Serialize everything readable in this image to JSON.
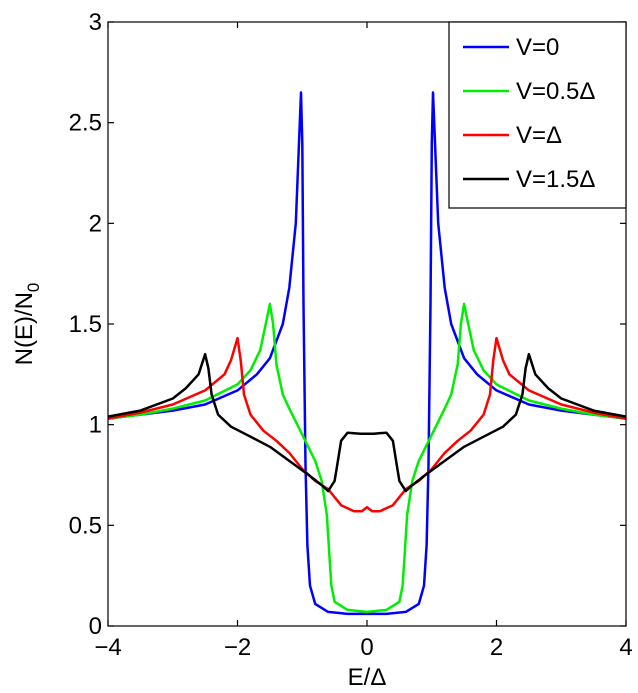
{
  "chart_data": {
    "type": "line",
    "xlabel": "E/Δ",
    "ylabel": "N(E)/N",
    "ylabel_subscript": "0",
    "xlim": [
      -4,
      4
    ],
    "ylim": [
      0,
      3
    ],
    "xticks": [
      -4,
      -2,
      0,
      2,
      4
    ],
    "xtick_labels": [
      "−4",
      "−2",
      "0",
      "2",
      "4"
    ],
    "yticks": [
      0,
      0.5,
      1,
      1.5,
      2,
      2.5,
      3
    ],
    "ytick_labels": [
      "0",
      "0.5",
      "1",
      "1.5",
      "2",
      "2.5",
      "3"
    ],
    "grid": false,
    "legend_position": "top-right",
    "series": [
      {
        "name": "V=0",
        "color": "#0000ff",
        "points": [
          [
            -4.0,
            1.03
          ],
          [
            -3.5,
            1.05
          ],
          [
            -3.0,
            1.07
          ],
          [
            -2.5,
            1.1
          ],
          [
            -2.0,
            1.17
          ],
          [
            -1.7,
            1.25
          ],
          [
            -1.5,
            1.33
          ],
          [
            -1.3,
            1.5
          ],
          [
            -1.2,
            1.68
          ],
          [
            -1.1,
            2.0
          ],
          [
            -1.05,
            2.4
          ],
          [
            -1.02,
            2.65
          ],
          [
            -1.0,
            2.4
          ],
          [
            -0.98,
            1.6
          ],
          [
            -0.95,
            0.8
          ],
          [
            -0.92,
            0.4
          ],
          [
            -0.88,
            0.2
          ],
          [
            -0.8,
            0.11
          ],
          [
            -0.6,
            0.07
          ],
          [
            -0.3,
            0.06
          ],
          [
            0.0,
            0.06
          ],
          [
            0.3,
            0.06
          ],
          [
            0.6,
            0.07
          ],
          [
            0.8,
            0.11
          ],
          [
            0.88,
            0.2
          ],
          [
            0.92,
            0.4
          ],
          [
            0.95,
            0.8
          ],
          [
            0.98,
            1.6
          ],
          [
            1.0,
            2.4
          ],
          [
            1.02,
            2.65
          ],
          [
            1.05,
            2.4
          ],
          [
            1.1,
            2.0
          ],
          [
            1.2,
            1.68
          ],
          [
            1.3,
            1.5
          ],
          [
            1.5,
            1.33
          ],
          [
            1.7,
            1.25
          ],
          [
            2.0,
            1.17
          ],
          [
            2.5,
            1.1
          ],
          [
            3.0,
            1.07
          ],
          [
            3.5,
            1.05
          ],
          [
            4.0,
            1.03
          ]
        ]
      },
      {
        "name": "V=0.5Δ",
        "color": "#00ee00",
        "points": [
          [
            -4.0,
            1.03
          ],
          [
            -3.5,
            1.05
          ],
          [
            -3.0,
            1.08
          ],
          [
            -2.5,
            1.12
          ],
          [
            -2.0,
            1.2
          ],
          [
            -1.8,
            1.27
          ],
          [
            -1.65,
            1.37
          ],
          [
            -1.55,
            1.52
          ],
          [
            -1.5,
            1.6
          ],
          [
            -1.45,
            1.5
          ],
          [
            -1.4,
            1.3
          ],
          [
            -1.3,
            1.15
          ],
          [
            -1.2,
            1.08
          ],
          [
            -1.0,
            0.95
          ],
          [
            -0.8,
            0.82
          ],
          [
            -0.7,
            0.72
          ],
          [
            -0.62,
            0.55
          ],
          [
            -0.58,
            0.35
          ],
          [
            -0.55,
            0.2
          ],
          [
            -0.5,
            0.12
          ],
          [
            -0.3,
            0.08
          ],
          [
            0.0,
            0.07
          ],
          [
            0.3,
            0.08
          ],
          [
            0.5,
            0.12
          ],
          [
            0.55,
            0.2
          ],
          [
            0.58,
            0.35
          ],
          [
            0.62,
            0.55
          ],
          [
            0.7,
            0.72
          ],
          [
            0.8,
            0.82
          ],
          [
            1.0,
            0.95
          ],
          [
            1.2,
            1.08
          ],
          [
            1.3,
            1.15
          ],
          [
            1.4,
            1.3
          ],
          [
            1.45,
            1.5
          ],
          [
            1.5,
            1.6
          ],
          [
            1.55,
            1.52
          ],
          [
            1.65,
            1.37
          ],
          [
            1.8,
            1.27
          ],
          [
            2.0,
            1.2
          ],
          [
            2.5,
            1.12
          ],
          [
            3.0,
            1.08
          ],
          [
            3.5,
            1.05
          ],
          [
            4.0,
            1.03
          ]
        ]
      },
      {
        "name": "V=Δ",
        "color": "#ff0000",
        "points": [
          [
            -4.0,
            1.03
          ],
          [
            -3.5,
            1.06
          ],
          [
            -3.0,
            1.1
          ],
          [
            -2.5,
            1.17
          ],
          [
            -2.2,
            1.25
          ],
          [
            -2.1,
            1.32
          ],
          [
            -2.0,
            1.43
          ],
          [
            -1.95,
            1.32
          ],
          [
            -1.9,
            1.15
          ],
          [
            -1.8,
            1.05
          ],
          [
            -1.6,
            0.97
          ],
          [
            -1.4,
            0.92
          ],
          [
            -1.2,
            0.86
          ],
          [
            -1.0,
            0.78
          ],
          [
            -0.8,
            0.72
          ],
          [
            -0.6,
            0.68
          ],
          [
            -0.4,
            0.6
          ],
          [
            -0.2,
            0.57
          ],
          [
            -0.08,
            0.57
          ],
          [
            0.0,
            0.59
          ],
          [
            0.08,
            0.57
          ],
          [
            0.2,
            0.57
          ],
          [
            0.4,
            0.6
          ],
          [
            0.6,
            0.68
          ],
          [
            0.8,
            0.72
          ],
          [
            1.0,
            0.78
          ],
          [
            1.2,
            0.86
          ],
          [
            1.4,
            0.92
          ],
          [
            1.6,
            0.97
          ],
          [
            1.8,
            1.05
          ],
          [
            1.9,
            1.15
          ],
          [
            1.95,
            1.32
          ],
          [
            2.0,
            1.43
          ],
          [
            2.1,
            1.32
          ],
          [
            2.2,
            1.25
          ],
          [
            2.5,
            1.17
          ],
          [
            3.0,
            1.1
          ],
          [
            3.5,
            1.06
          ],
          [
            4.0,
            1.03
          ]
        ]
      },
      {
        "name": "V=1.5Δ",
        "color": "#000000",
        "points": [
          [
            -4.0,
            1.04
          ],
          [
            -3.5,
            1.07
          ],
          [
            -3.0,
            1.13
          ],
          [
            -2.8,
            1.18
          ],
          [
            -2.6,
            1.25
          ],
          [
            -2.5,
            1.35
          ],
          [
            -2.45,
            1.28
          ],
          [
            -2.4,
            1.15
          ],
          [
            -2.3,
            1.05
          ],
          [
            -2.1,
            0.99
          ],
          [
            -1.8,
            0.94
          ],
          [
            -1.5,
            0.89
          ],
          [
            -1.2,
            0.82
          ],
          [
            -0.9,
            0.75
          ],
          [
            -0.7,
            0.7
          ],
          [
            -0.6,
            0.67
          ],
          [
            -0.5,
            0.72
          ],
          [
            -0.45,
            0.82
          ],
          [
            -0.4,
            0.92
          ],
          [
            -0.3,
            0.96
          ],
          [
            -0.1,
            0.955
          ],
          [
            0.0,
            0.955
          ],
          [
            0.1,
            0.955
          ],
          [
            0.3,
            0.96
          ],
          [
            0.4,
            0.92
          ],
          [
            0.45,
            0.82
          ],
          [
            0.5,
            0.72
          ],
          [
            0.6,
            0.67
          ],
          [
            0.7,
            0.7
          ],
          [
            0.9,
            0.75
          ],
          [
            1.2,
            0.82
          ],
          [
            1.5,
            0.89
          ],
          [
            1.8,
            0.94
          ],
          [
            2.1,
            0.99
          ],
          [
            2.3,
            1.05
          ],
          [
            2.4,
            1.15
          ],
          [
            2.45,
            1.28
          ],
          [
            2.5,
            1.35
          ],
          [
            2.6,
            1.25
          ],
          [
            2.8,
            1.18
          ],
          [
            3.0,
            1.13
          ],
          [
            3.5,
            1.07
          ],
          [
            4.0,
            1.04
          ]
        ]
      }
    ]
  }
}
